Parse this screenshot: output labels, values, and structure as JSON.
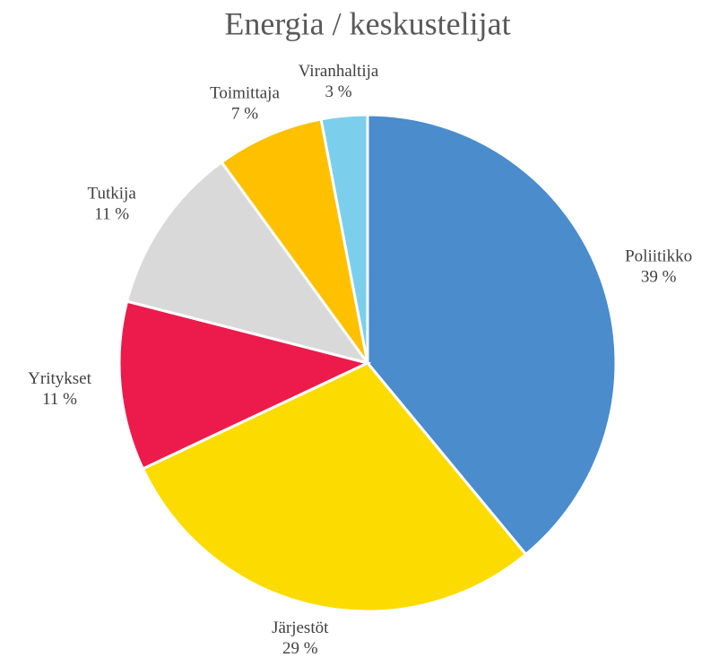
{
  "chart_data": {
    "type": "pie",
    "title": "Energia / keskustelijat",
    "categories": [
      "Poliitikko",
      "Järjestöt",
      "Yritykset",
      "Tutkija",
      "Toimittaja",
      "Viranhaltija"
    ],
    "values": [
      39,
      29,
      11,
      11,
      7,
      3
    ],
    "value_labels": [
      "39 %",
      "29 %",
      "11 %",
      "11 %",
      "7 %",
      "3 %"
    ],
    "colors": [
      "#4a8ccc",
      "#fcdb00",
      "#ec1b4b",
      "#d9d9d9",
      "#ffc000",
      "#7ccfec"
    ]
  }
}
